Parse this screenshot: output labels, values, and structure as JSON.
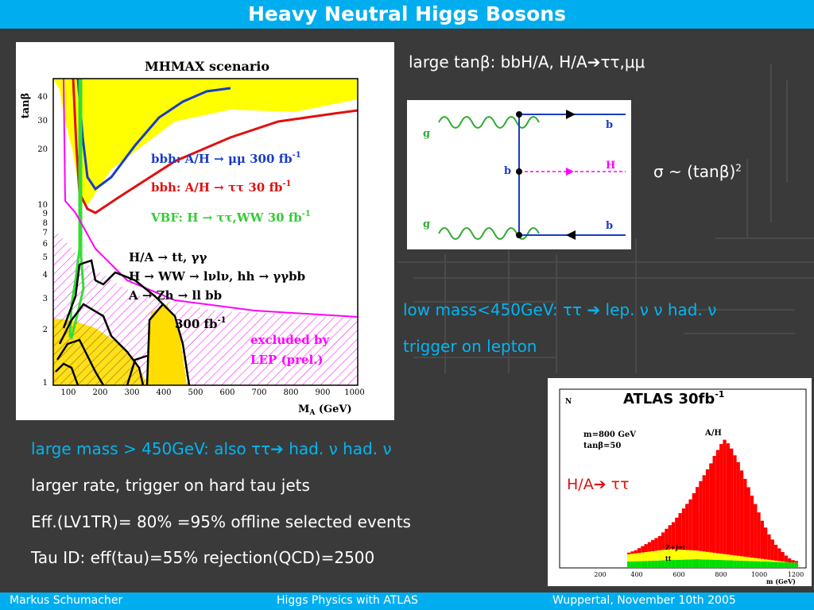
{
  "title": "Heavy Neutral Higgs Bosons",
  "footer": {
    "author": "Markus  Schumacher",
    "talk": "Higgs Physics  with ATLAS",
    "place_date": "Wuppertal, November 10th 2005"
  },
  "text": {
    "large_tanb": "large tanβ:  bbH/A, H/A➔ττ,μμ",
    "sigma": "σ ~ (tanβ)",
    "sigma_exp": "2",
    "low_mass": "low mass<450GeV: ττ ➔ lep. ν ν had. ν",
    "trigger_lepton": "trigger on lepton",
    "large_mass": "large mass > 450GeV:  also ττ➔ had. ν  had. ν",
    "larger_rate": "larger rate, trigger on hard tau jets",
    "eff": "Eff.(LV1TR)= 80% =95% offline selected events",
    "tauid": "Tau ID: eff(tau)=55%  rejection(QCD)=2500"
  },
  "plot1": {
    "title": "MHMAX scenario",
    "ylabel": "tanβ",
    "xlabel": "M",
    "xlabel_sub": "A",
    "xlabel_unit": "(GeV)",
    "yticks": [
      "1",
      "2",
      "3",
      "4",
      "5",
      "6",
      "7",
      "8",
      "9",
      "10",
      "20",
      "30",
      "40"
    ],
    "xticks": [
      "100",
      "200",
      "300",
      "400",
      "500",
      "600",
      "700",
      "800",
      "900",
      "1000"
    ],
    "leg_bbh_mm": "bbh: A/H → μμ 300 fb",
    "leg_bbh_tt": "bbh: A/H → ττ 30 fb",
    "leg_vbf": "VBF: H → ττ,WW 30 fb",
    "leg_sup": "-1",
    "line1": "H/A → tt, γγ",
    "line2": "H → WW → lνlν, hh → γγbb",
    "line3": "A → Zh → ll bb",
    "lumi": "300 fb",
    "excl1": "excluded by",
    "excl2": "LEP (prel.)"
  },
  "diagram": {
    "g_top": "g",
    "g_bot": "g",
    "b_mid": "b",
    "b_top": "b",
    "b_bot": "b",
    "H": "H"
  },
  "plot2": {
    "title": "ATLAS 30fb",
    "title_sup": "-1",
    "label": "H/A➔ ττ",
    "N": "N",
    "params1": "m",
    "params1b": "=800 GeV",
    "params2": "tanβ=50",
    "ah": "A/H",
    "zjet": "Z+Jet",
    "tt": "tt",
    "xlabel": "m",
    "xlabel_unit": "(GeV)",
    "xticks": [
      "200",
      "400",
      "600",
      "800",
      "1000",
      "1200"
    ],
    "colors": {
      "signal": "#ff0000",
      "zjet": "#ffff00",
      "tt": "#00dd00"
    }
  }
}
